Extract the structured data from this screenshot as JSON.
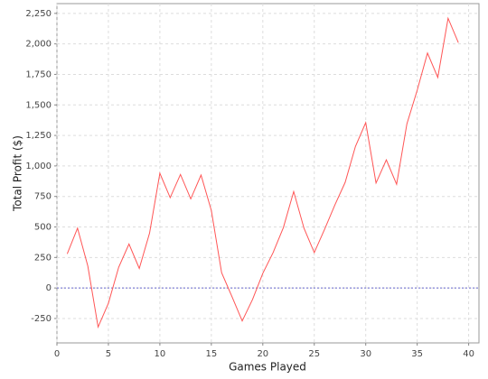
{
  "chart_data": {
    "type": "line",
    "x_label": "Games Played",
    "y_label": "Total Profit ($)",
    "x": [
      1,
      2,
      3,
      4,
      5,
      6,
      7,
      8,
      9,
      10,
      11,
      12,
      13,
      14,
      15,
      16,
      17,
      18,
      19,
      20,
      21,
      22,
      23,
      24,
      25,
      26,
      27,
      28,
      29,
      30,
      31,
      32,
      33,
      34,
      35,
      36,
      37,
      38,
      39
    ],
    "series": [
      {
        "name": "Total Profit",
        "color": "#ff5555",
        "values": [
          280,
          490,
          180,
          -320,
          -125,
          170,
          360,
          160,
          450,
          940,
          740,
          930,
          730,
          925,
          635,
          125,
          -70,
          -270,
          -95,
          120,
          290,
          495,
          790,
          490,
          290,
          480,
          680,
          865,
          1160,
          1355,
          860,
          1050,
          850,
          1345,
          1620,
          1925,
          1725,
          2210,
          2010
        ]
      }
    ],
    "xlim": [
      0,
      41
    ],
    "xticks": [
      0,
      5,
      10,
      15,
      20,
      25,
      30,
      35,
      40
    ],
    "ylim": [
      -450,
      2330
    ],
    "yticks": [
      -250,
      0,
      250,
      500,
      750,
      {
        "value": 1000,
        "label": "1,000"
      },
      {
        "value": 1250,
        "label": "1,250"
      },
      {
        "value": 1500,
        "label": "1,500"
      },
      {
        "value": 1750,
        "label": "1,750"
      },
      {
        "value": 2000,
        "label": "2,000"
      },
      {
        "value": 2250,
        "label": "2,250"
      }
    ],
    "grid": true,
    "zero_line": {
      "value": 0,
      "color": "#6666cc"
    }
  }
}
